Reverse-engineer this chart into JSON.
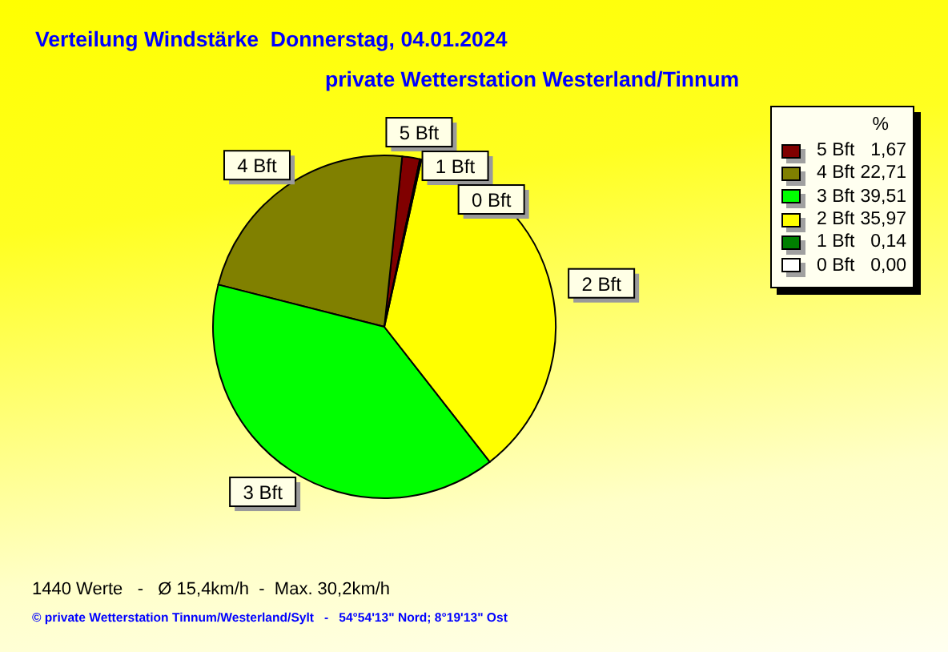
{
  "chart_data": {
    "type": "pie",
    "title": "Verteilung Windstärke  Donnerstag, 04.01.2024",
    "subtitle": "private Wetterstation Westerland/Tinnum",
    "categories": [
      "5 Bft",
      "4 Bft",
      "3 Bft",
      "2 Bft",
      "1 Bft",
      "0 Bft"
    ],
    "values": [
      1.67,
      22.71,
      39.51,
      35.97,
      0.14,
      0.0
    ],
    "colors": [
      "#800000",
      "#808000",
      "#00ff00",
      "#ffff00",
      "#008000",
      "#ffffff"
    ],
    "value_labels": [
      "1,67",
      "22,71",
      "39,51",
      "35,97",
      "0,14",
      "0,00"
    ],
    "legend_title": "%",
    "legend": "top right",
    "annotations": [
      "1440 Werte   -   Ø 15,4km/h  -  Max. 30,2km/h",
      "© private Wetterstation Tinnum/Westerland/Sylt   -   54°54'13\" Nord; 8°19'13\" Ost"
    ]
  }
}
